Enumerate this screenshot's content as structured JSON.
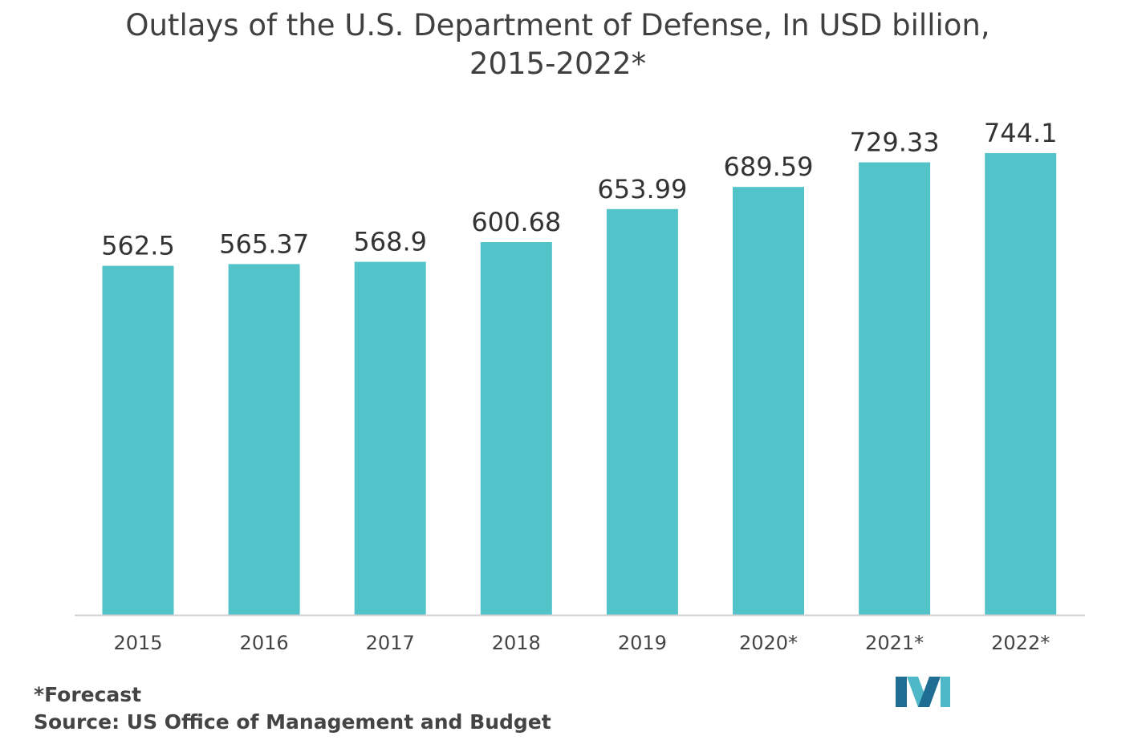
{
  "chart_data": {
    "type": "bar",
    "title_line1": "Outlays of the U.S. Department of Defense, In USD billion,",
    "title_line2": "2015-2022*",
    "categories": [
      "2015",
      "2016",
      "2017",
      "2018",
      "2019",
      "2020*",
      "2021*",
      "2022*"
    ],
    "values": [
      562.5,
      565.37,
      568.9,
      600.68,
      653.99,
      689.59,
      729.33,
      744.1
    ],
    "value_labels": [
      "562.5",
      "565.37",
      "568.9",
      "600.68",
      "653.99",
      "689.59",
      "729.33",
      "744.1"
    ],
    "xlabel": "",
    "ylabel": "",
    "ylim": [
      0,
      780
    ],
    "grid": false,
    "legend": "none",
    "bar_color": "#52c3c9"
  },
  "footnotes": {
    "forecast": "*Forecast",
    "source": "Source: US Office of Management and Budget"
  },
  "colors": {
    "logo_dark": "#1f6d93",
    "logo_light": "#4fb8c8"
  }
}
